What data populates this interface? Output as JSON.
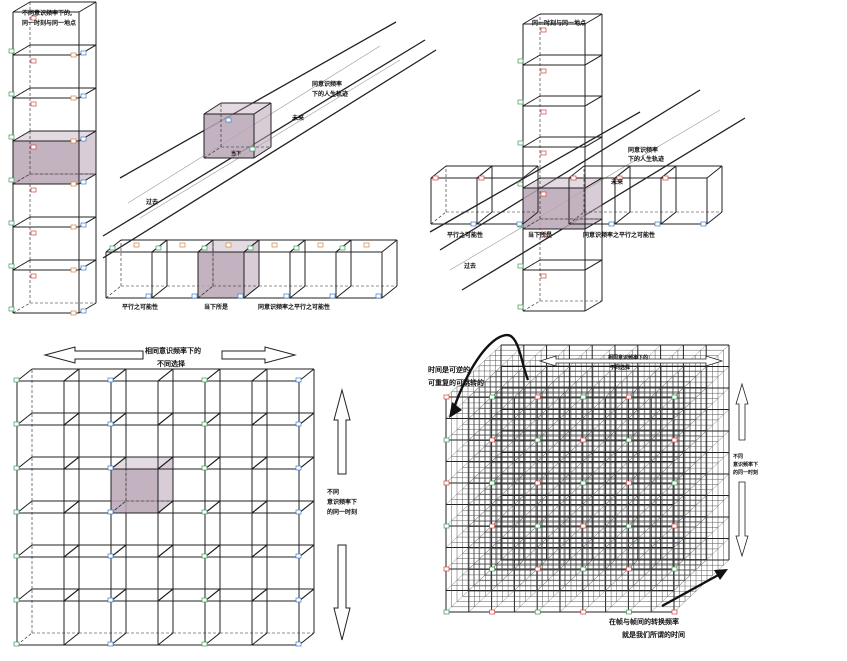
{
  "panels": {
    "tower_left": {
      "title_line1": "不同意识频率下的,",
      "title_line2": "同一时刻与同一地点"
    },
    "track_top": {
      "label_same_freq_line1": "同意识频率",
      "label_same_freq_line2": "下的人生轨迹",
      "label_future": "未来",
      "label_present": "当下",
      "label_past": "过去",
      "row_label_parallel": "平行之可能性",
      "row_label_current": "当下所是",
      "row_label_same_freq": "同意识频率之平行之可能性"
    },
    "cross_right": {
      "title": "同一时刻与同一地点",
      "label_same_freq_line1": "同意识频率",
      "label_same_freq_line2": "下的人生轨迹",
      "label_future": "未来",
      "label_past": "过去",
      "row_label_parallel": "平行之可能性",
      "row_label_current": "当下所是",
      "row_label_same_freq": "同意识频率之平行之可能性"
    },
    "grid_bottom_left": {
      "top_line1": "相同意识频率下的",
      "top_line2": "不同选择",
      "side_line1": "不同",
      "side_line2": "意识频率下",
      "side_line3": "的同一时刻"
    },
    "cube_bottom_right": {
      "arc_line1": "时间是可逆的",
      "arc_line2": "可重复的可跳转的",
      "top_line1": "相同意识频率下的",
      "top_line2": "不同选择",
      "side_line1": "不同",
      "side_line2": "意识频率下",
      "side_line3": "的同一时刻",
      "bottom_line1": "在帧与帧间的转换频率",
      "bottom_line2": "就是我们所谓的时间"
    }
  },
  "colors": {
    "line": "#222222",
    "highlight_fill": "#b8a4b4",
    "tag_red": "#d8443c",
    "tag_green": "#3c9a5a",
    "tag_blue": "#3a78c8",
    "tag_orange": "#d8803c"
  }
}
